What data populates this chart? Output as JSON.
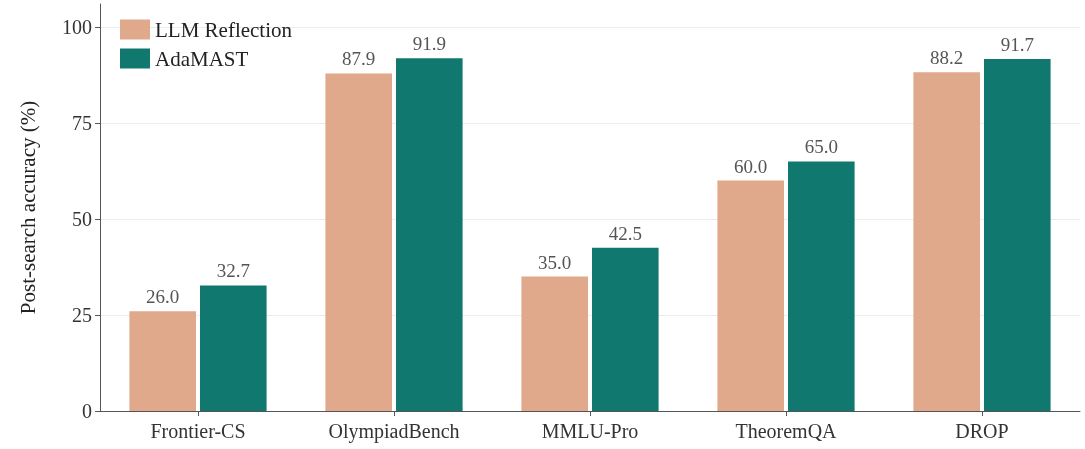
{
  "chart_data": {
    "type": "bar",
    "ylabel": "Post-search accuracy (%)",
    "categories": [
      "Frontier-CS",
      "OlympiadBench",
      "MMLU-Pro",
      "TheoremQA",
      "DROP"
    ],
    "series": [
      {
        "name": "LLM Reflection",
        "color": "#e0a98c",
        "values": [
          26.0,
          87.9,
          35.0,
          60.0,
          88.2
        ],
        "value_labels": [
          "26.0",
          "87.9",
          "35.0",
          "60.0",
          "88.2"
        ]
      },
      {
        "name": "AdaMAST",
        "color": "#10786e",
        "values": [
          32.7,
          91.9,
          42.5,
          65.0,
          91.7
        ],
        "value_labels": [
          "32.7",
          "91.9",
          "42.5",
          "65.0",
          "91.7"
        ]
      }
    ],
    "ylim": [
      0,
      106
    ],
    "yticks": [
      0,
      25,
      50,
      75,
      100
    ],
    "grid": "y",
    "legend": "top left"
  }
}
